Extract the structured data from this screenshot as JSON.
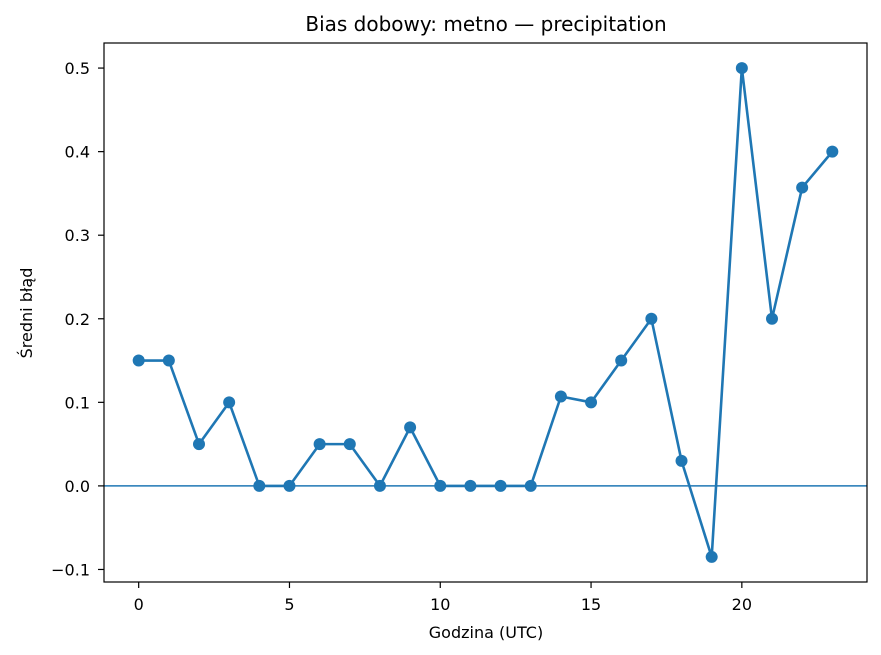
{
  "chart_data": {
    "type": "line",
    "title": "Bias dobowy: metno — precipitation",
    "xlabel": "Godzina (UTC)",
    "ylabel": "Średni błąd",
    "xlim": [
      -1.15,
      24.15
    ],
    "ylim": [
      -0.115,
      0.53
    ],
    "xticks": [
      0,
      5,
      10,
      15,
      20
    ],
    "xtick_labels": [
      "0",
      "5",
      "10",
      "15",
      "20"
    ],
    "yticks": [
      -0.1,
      0.0,
      0.1,
      0.2,
      0.3,
      0.4,
      0.5
    ],
    "ytick_labels": [
      "−0.1",
      "0.0",
      "0.1",
      "0.2",
      "0.3",
      "0.4",
      "0.5"
    ],
    "reference_line": {
      "y": 0.0
    },
    "grid": false,
    "series": [
      {
        "color": "#1f77b4",
        "marker": "circle",
        "x": [
          0,
          1,
          2,
          3,
          4,
          5,
          6,
          7,
          8,
          9,
          10,
          11,
          12,
          13,
          14,
          15,
          16,
          17,
          18,
          19,
          20,
          21,
          22,
          23
        ],
        "y": [
          0.15,
          0.15,
          0.05,
          0.1,
          0.0,
          0.0,
          0.05,
          0.05,
          0.0,
          0.07,
          0.0,
          0.0,
          0.0,
          0.0,
          0.107,
          0.1,
          0.15,
          0.2,
          0.03,
          -0.085,
          0.5,
          0.2,
          0.357,
          0.4
        ]
      }
    ]
  }
}
